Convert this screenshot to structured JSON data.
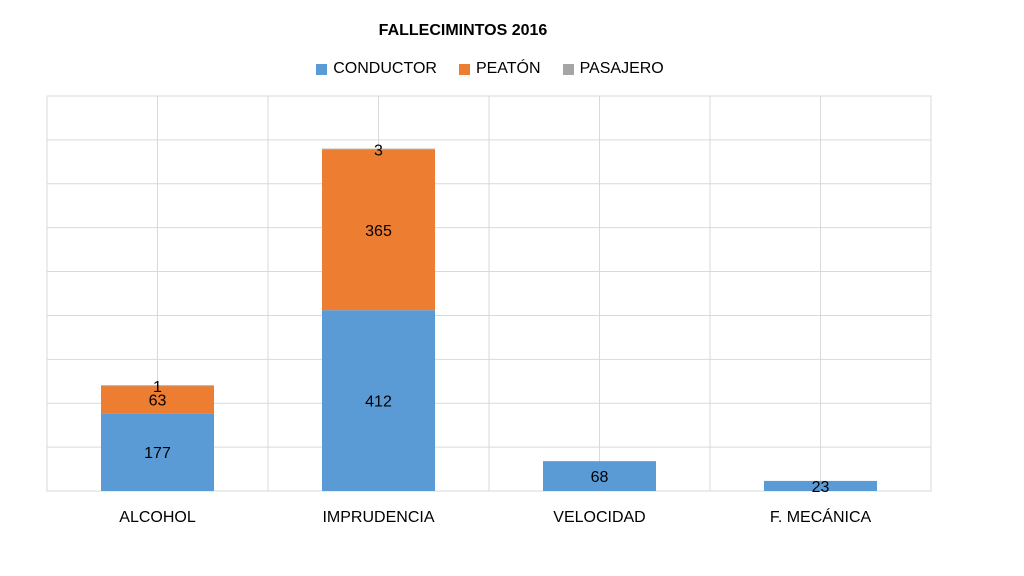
{
  "chart_data": {
    "type": "bar",
    "stacked": true,
    "title": "FALLECIMINTOS 2016",
    "categories": [
      "ALCOHOL",
      "IMPRUDENCIA",
      "VELOCIDAD",
      "F. MECÁNICA"
    ],
    "series": [
      {
        "name": "CONDUCTOR",
        "values": [
          177,
          412,
          68,
          23
        ],
        "color": "#5B9BD5"
      },
      {
        "name": "PEATÓN",
        "values": [
          63,
          365,
          null,
          null
        ],
        "color": "#ED7D31"
      },
      {
        "name": "PASAJERO",
        "values": [
          1,
          3,
          null,
          null
        ],
        "color": "#A5A5A5"
      }
    ],
    "ylim": [
      0,
      900
    ],
    "grid": true,
    "legend_position": "top"
  }
}
